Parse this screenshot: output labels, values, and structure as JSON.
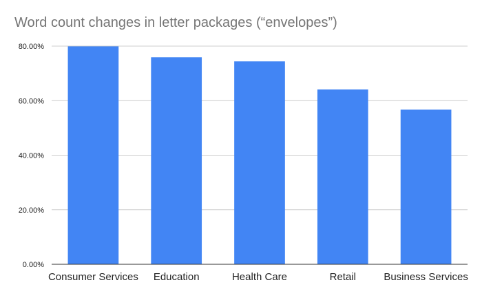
{
  "chart_data": {
    "type": "bar",
    "title": "Word count changes in letter packages (“envelopes”)",
    "xlabel": "",
    "ylabel": "",
    "categories": [
      "Consumer Services",
      "Education",
      "Health Care",
      "Retail",
      "Business Services"
    ],
    "values": [
      79.9,
      75.9,
      74.4,
      64.1,
      56.7
    ],
    "ylim": [
      0,
      80
    ],
    "yticks": [
      "0.00%",
      "20.00%",
      "40.00%",
      "60.00%",
      "80.00%"
    ],
    "ytick_values": [
      0,
      20,
      40,
      60,
      80
    ],
    "grid": true,
    "legend": "none",
    "colors": {
      "bar": "#4285f4",
      "grid": "#cccccc",
      "axis": "#333333"
    }
  }
}
